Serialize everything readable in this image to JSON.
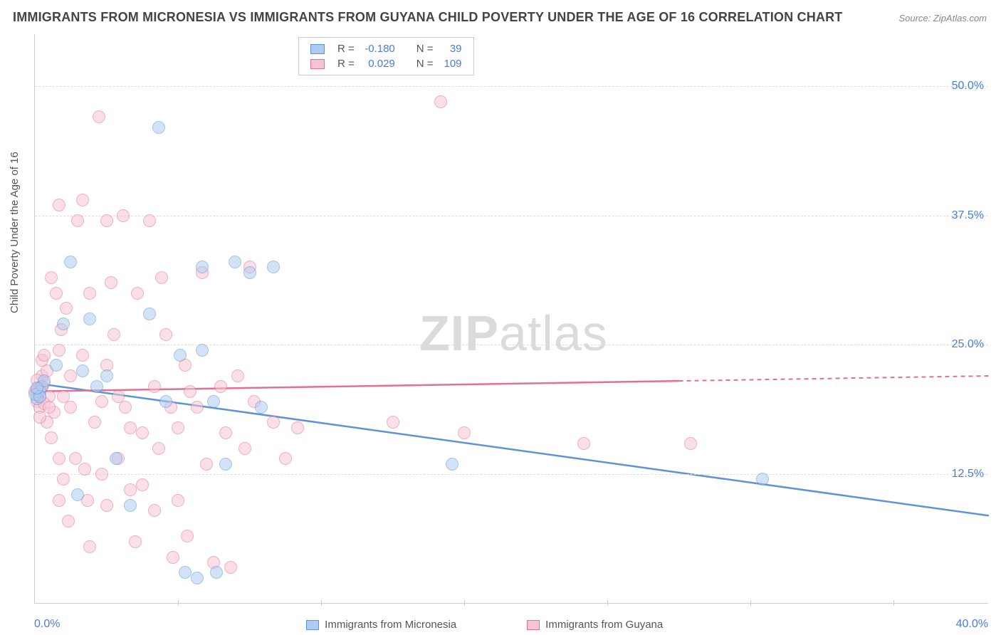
{
  "title": "IMMIGRANTS FROM MICRONESIA VS IMMIGRANTS FROM GUYANA CHILD POVERTY UNDER THE AGE OF 16 CORRELATION CHART",
  "source": "Source: ZipAtlas.com",
  "ylabel": "Child Poverty Under the Age of 16",
  "watermark_zip": "ZIP",
  "watermark_atlas": "atlas",
  "chart": {
    "type": "scatter",
    "xlim": [
      0,
      40
    ],
    "ylim": [
      0,
      55
    ],
    "ytick_labels": [
      "12.5%",
      "25.0%",
      "37.5%",
      "50.0%"
    ],
    "ytick_values": [
      12.5,
      25.0,
      37.5,
      50.0
    ],
    "xtick_values": [
      6,
      12,
      18,
      24,
      30,
      36
    ],
    "x_axis_left_label": "0.0%",
    "x_axis_right_label": "40.0%",
    "background_color": "#ffffff",
    "grid_color": "#dddddd",
    "axis_color": "#cccccc",
    "label_color": "#4a7dd6",
    "series": [
      {
        "name": "Immigrants from Micronesia",
        "fill": "#aeccf2",
        "fill_opacity": 0.55,
        "stroke": "#5e93da",
        "r_value": "-0.180",
        "n_value": "39",
        "marker_radius": 9,
        "trend": {
          "x1": 0,
          "y1": 21.3,
          "x2": 40,
          "y2": 8.5,
          "dash_from_x": 40
        },
        "points": [
          [
            0.2,
            20.5
          ],
          [
            0.3,
            21.0
          ],
          [
            0.1,
            19.8
          ],
          [
            0.0,
            20.2
          ],
          [
            0.4,
            21.5
          ],
          [
            0.2,
            20.0
          ],
          [
            0.1,
            20.8
          ],
          [
            0.9,
            23.0
          ],
          [
            1.2,
            27.0
          ],
          [
            1.5,
            33.0
          ],
          [
            1.8,
            10.5
          ],
          [
            2.0,
            22.5
          ],
          [
            2.3,
            27.5
          ],
          [
            2.6,
            21.0
          ],
          [
            3.0,
            22.0
          ],
          [
            3.4,
            14.0
          ],
          [
            4.0,
            9.5
          ],
          [
            4.8,
            28.0
          ],
          [
            5.2,
            46.0
          ],
          [
            5.5,
            19.5
          ],
          [
            6.1,
            24.0
          ],
          [
            6.3,
            3.0
          ],
          [
            6.8,
            2.5
          ],
          [
            7.0,
            32.5
          ],
          [
            7.0,
            24.5
          ],
          [
            7.5,
            19.5
          ],
          [
            7.6,
            3.0
          ],
          [
            8.0,
            13.5
          ],
          [
            8.4,
            33.0
          ],
          [
            9.0,
            32.0
          ],
          [
            9.5,
            19.0
          ],
          [
            10.0,
            32.5
          ],
          [
            17.5,
            13.5
          ],
          [
            30.5,
            12.0
          ]
        ]
      },
      {
        "name": "Immigrants from Guyana",
        "fill": "#f6c5d3",
        "fill_opacity": 0.55,
        "stroke": "#e46f90",
        "r_value": "0.029",
        "n_value": "109",
        "marker_radius": 9,
        "trend": {
          "x1": 0,
          "y1": 20.5,
          "x2": 40,
          "y2": 22.0,
          "dash_from_x": 27
        },
        "points": [
          [
            0.1,
            19.5
          ],
          [
            0.2,
            20.0
          ],
          [
            0.0,
            20.5
          ],
          [
            0.3,
            21.0
          ],
          [
            0.1,
            20.2
          ],
          [
            0.2,
            19.0
          ],
          [
            0.4,
            21.3
          ],
          [
            0.1,
            20.7
          ],
          [
            0.5,
            17.5
          ],
          [
            0.3,
            22.0
          ],
          [
            0.2,
            18.0
          ],
          [
            0.6,
            20.0
          ],
          [
            0.4,
            19.3
          ],
          [
            0.1,
            21.6
          ],
          [
            0.7,
            16.0
          ],
          [
            0.3,
            23.5
          ],
          [
            0.2,
            20.8
          ],
          [
            0.8,
            18.5
          ],
          [
            0.5,
            22.5
          ],
          [
            0.4,
            24.0
          ],
          [
            0.6,
            19.0
          ],
          [
            0.9,
            30.0
          ],
          [
            0.7,
            31.5
          ],
          [
            1.0,
            38.5
          ],
          [
            1.1,
            26.5
          ],
          [
            1.0,
            24.5
          ],
          [
            1.2,
            20.0
          ],
          [
            1.0,
            14.0
          ],
          [
            1.2,
            12.0
          ],
          [
            1.0,
            10.0
          ],
          [
            1.4,
            8.0
          ],
          [
            1.3,
            28.5
          ],
          [
            1.5,
            22.0
          ],
          [
            1.7,
            14.0
          ],
          [
            1.5,
            19.0
          ],
          [
            1.8,
            37.0
          ],
          [
            2.0,
            39.0
          ],
          [
            2.0,
            24.0
          ],
          [
            2.1,
            13.0
          ],
          [
            2.2,
            10.0
          ],
          [
            2.3,
            5.5
          ],
          [
            2.3,
            30.0
          ],
          [
            2.5,
            17.5
          ],
          [
            2.7,
            47.0
          ],
          [
            2.8,
            19.5
          ],
          [
            2.8,
            12.5
          ],
          [
            3.0,
            37.0
          ],
          [
            3.0,
            23.0
          ],
          [
            3.0,
            9.5
          ],
          [
            3.2,
            31.0
          ],
          [
            3.3,
            26.0
          ],
          [
            3.5,
            20.0
          ],
          [
            3.5,
            14.0
          ],
          [
            3.7,
            37.5
          ],
          [
            3.8,
            19.0
          ],
          [
            4.0,
            17.0
          ],
          [
            4.0,
            11.0
          ],
          [
            4.2,
            6.0
          ],
          [
            4.3,
            30.0
          ],
          [
            4.5,
            16.5
          ],
          [
            4.5,
            11.5
          ],
          [
            4.8,
            37.0
          ],
          [
            5.0,
            21.0
          ],
          [
            5.0,
            9.0
          ],
          [
            5.2,
            15.0
          ],
          [
            5.3,
            31.5
          ],
          [
            5.5,
            26.0
          ],
          [
            5.7,
            19.0
          ],
          [
            5.8,
            4.5
          ],
          [
            6.0,
            17.0
          ],
          [
            6.0,
            10.0
          ],
          [
            6.3,
            23.0
          ],
          [
            6.4,
            6.5
          ],
          [
            6.5,
            20.5
          ],
          [
            6.8,
            19.0
          ],
          [
            7.0,
            32.0
          ],
          [
            7.2,
            13.5
          ],
          [
            7.5,
            4.0
          ],
          [
            7.8,
            21.0
          ],
          [
            8.0,
            16.5
          ],
          [
            8.2,
            3.5
          ],
          [
            8.5,
            22.0
          ],
          [
            8.8,
            15.0
          ],
          [
            9.0,
            32.5
          ],
          [
            9.2,
            19.5
          ],
          [
            10.0,
            17.5
          ],
          [
            10.5,
            14.0
          ],
          [
            11.0,
            17.0
          ],
          [
            15.0,
            17.5
          ],
          [
            17.0,
            48.5
          ],
          [
            18.0,
            16.5
          ],
          [
            23.0,
            15.5
          ],
          [
            27.5,
            15.5
          ]
        ]
      }
    ],
    "legend_top": {
      "r_label": "R =",
      "n_label": "N ="
    }
  },
  "legend_bottom": {
    "s1": "Immigrants from Micronesia",
    "s2": "Immigrants from Guyana"
  }
}
